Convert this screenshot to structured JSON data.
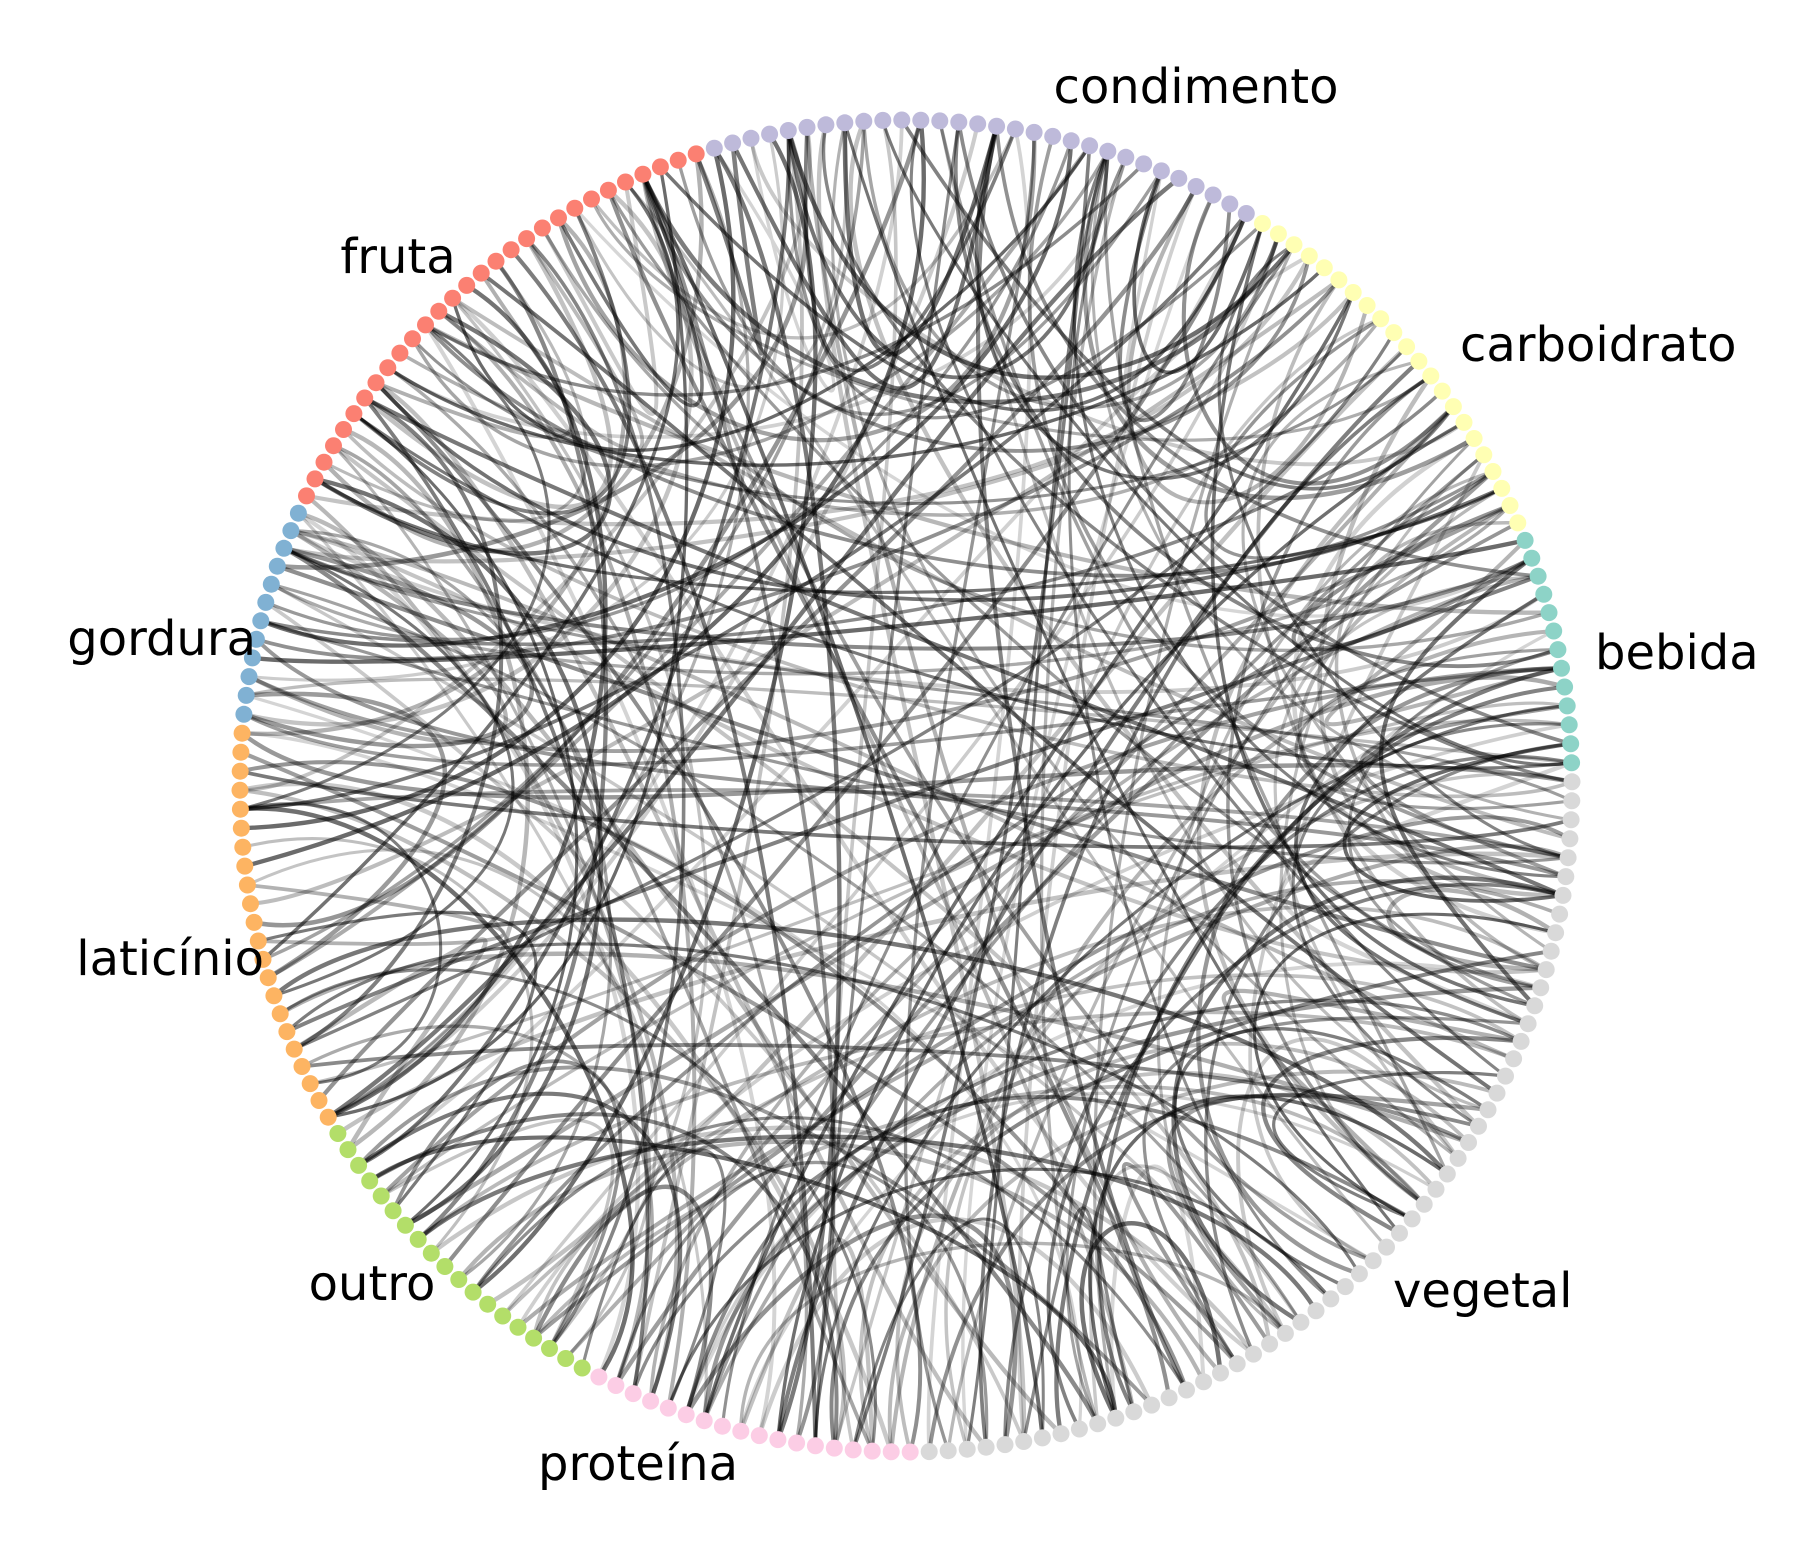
{
  "diagram": {
    "type": "chord",
    "node_count": 220,
    "edge_color": "#000000",
    "groups": [
      {
        "name": "bebida",
        "label": "bebida",
        "color": "#8dd3c7",
        "count": 13
      },
      {
        "name": "carboidrato",
        "label": "carboidrato",
        "color": "#ffffb3",
        "count": 22
      },
      {
        "name": "condimento",
        "label": "condimento",
        "color": "#bebada",
        "count": 30
      },
      {
        "name": "fruta",
        "label": "fruta",
        "color": "#fb8072",
        "count": 29
      },
      {
        "name": "gordura",
        "label": "gordura",
        "color": "#80b1d3",
        "count": 12
      },
      {
        "name": "laticínio",
        "label": "laticínio",
        "color": "#fdb462",
        "count": 22
      },
      {
        "name": "outro",
        "label": "outro",
        "color": "#b3de69",
        "count": 19
      },
      {
        "name": "proteína",
        "label": "proteína",
        "color": "#fccde5",
        "count": 18
      },
      {
        "name": "vegetal",
        "label": "vegetal",
        "color": "#d9d9d9",
        "count": 55
      }
    ]
  }
}
